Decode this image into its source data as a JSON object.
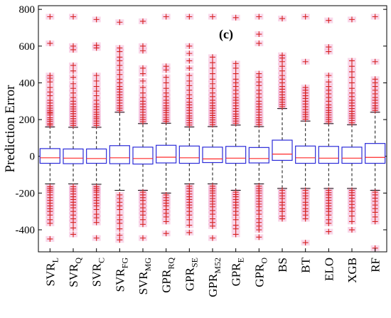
{
  "chart_data": {
    "type": "box",
    "panel_label": "(c)",
    "ylabel": "Prediction Error",
    "ylim": [
      -520,
      820
    ],
    "yticks": [
      -400,
      -200,
      0,
      200,
      400,
      600,
      800
    ],
    "grid": false,
    "colors": {
      "box": "#2b2bd9",
      "median": "#ff2a2a",
      "whisker": "#111111",
      "outlier": "#d62020",
      "outlier_halo": "#f4b8d8",
      "axis": "#000000"
    },
    "categories": [
      {
        "base": "SVR",
        "sub": "L"
      },
      {
        "base": "SVR",
        "sub": "Q"
      },
      {
        "base": "SVR",
        "sub": "C"
      },
      {
        "base": "SVR",
        "sub": "FG"
      },
      {
        "base": "SVR",
        "sub": "MG"
      },
      {
        "base": "GPR",
        "sub": "RQ"
      },
      {
        "base": "GPR",
        "sub": "SE"
      },
      {
        "base": "GPR",
        "sub": "M52"
      },
      {
        "base": "GPR",
        "sub": "E"
      },
      {
        "base": "GPR",
        "sub": "O"
      },
      {
        "base": "BS",
        "sub": ""
      },
      {
        "base": "BT",
        "sub": ""
      },
      {
        "base": "ELO",
        "sub": ""
      },
      {
        "base": "XGB",
        "sub": ""
      },
      {
        "base": "RF",
        "sub": ""
      }
    ],
    "boxes": [
      {
        "q1": -38,
        "median": -8,
        "q3": 42,
        "whisker_low": -150,
        "whisker_high": 160,
        "upper_outliers": [
          170,
          178,
          190,
          200,
          210,
          225,
          235,
          240,
          250,
          262,
          275,
          290,
          305,
          330,
          350,
          375,
          405,
          425,
          440,
          615,
          760
        ],
        "lower_outliers": [
          -165,
          -175,
          -185,
          -195,
          -210,
          -225,
          -240,
          -255,
          -270,
          -285,
          -300,
          -320,
          -345,
          -365,
          -450
        ]
      },
      {
        "q1": -40,
        "median": -10,
        "q3": 40,
        "whisker_low": -150,
        "whisker_high": 158,
        "upper_outliers": [
          168,
          180,
          192,
          205,
          218,
          232,
          245,
          258,
          270,
          285,
          300,
          320,
          345,
          370,
          395,
          430,
          465,
          495,
          580,
          600,
          760
        ],
        "lower_outliers": [
          -165,
          -178,
          -190,
          -205,
          -220,
          -235,
          -250,
          -265,
          -280,
          -300,
          -320,
          -340,
          -360,
          -390,
          -425
        ]
      },
      {
        "q1": -38,
        "median": -12,
        "q3": 40,
        "whisker_low": -152,
        "whisker_high": 158,
        "upper_outliers": [
          168,
          180,
          192,
          205,
          215,
          228,
          240,
          255,
          270,
          285,
          305,
          330,
          355,
          380,
          410,
          440,
          590,
          605,
          745
        ],
        "lower_outliers": [
          -165,
          -175,
          -185,
          -195,
          -210,
          -225,
          -240,
          -255,
          -270,
          -290,
          -315,
          -335,
          -360,
          -445
        ]
      },
      {
        "q1": -40,
        "median": -8,
        "q3": 58,
        "whisker_low": -185,
        "whisker_high": 240,
        "upper_outliers": [
          250,
          262,
          275,
          290,
          305,
          320,
          335,
          350,
          365,
          380,
          400,
          420,
          445,
          470,
          495,
          520,
          540,
          570,
          590,
          730
        ],
        "lower_outliers": [
          -210,
          -230,
          -250,
          -270,
          -290,
          -320,
          -345,
          -365,
          -395,
          -430,
          -455
        ]
      },
      {
        "q1": -42,
        "median": -12,
        "q3": 50,
        "whisker_low": -185,
        "whisker_high": 178,
        "upper_outliers": [
          188,
          200,
          212,
          225,
          240,
          255,
          270,
          285,
          300,
          320,
          345,
          375,
          410,
          450,
          480,
          575,
          600,
          735
        ],
        "lower_outliers": [
          -195,
          -210,
          -225,
          -240,
          -260,
          -280,
          -300,
          -320,
          -345,
          -370,
          -445
        ]
      },
      {
        "q1": -36,
        "median": -5,
        "q3": 60,
        "whisker_low": -200,
        "whisker_high": 180,
        "upper_outliers": [
          190,
          200,
          212,
          225,
          238,
          250,
          262,
          275,
          290,
          305,
          325,
          345,
          370,
          400,
          430,
          470,
          490,
          760
        ],
        "lower_outliers": [
          -210,
          -225,
          -240,
          -255,
          -270,
          -290,
          -310,
          -330,
          -355,
          -420
        ]
      },
      {
        "q1": -38,
        "median": -8,
        "q3": 56,
        "whisker_low": -150,
        "whisker_high": 160,
        "upper_outliers": [
          170,
          182,
          195,
          208,
          220,
          235,
          250,
          265,
          280,
          295,
          315,
          335,
          360,
          385,
          410,
          440,
          480,
          520,
          560,
          600,
          760
        ],
        "lower_outliers": [
          -162,
          -175,
          -190,
          -205,
          -220,
          -235,
          -250,
          -265,
          -280,
          -300,
          -320,
          -345,
          -375,
          -415
        ]
      },
      {
        "q1": -34,
        "median": -14,
        "q3": 50,
        "whisker_low": -150,
        "whisker_high": 162,
        "upper_outliers": [
          172,
          185,
          198,
          210,
          222,
          235,
          248,
          262,
          275,
          290,
          305,
          325,
          345,
          370,
          395,
          420,
          450,
          480,
          510,
          540,
          760
        ],
        "lower_outliers": [
          -162,
          -175,
          -188,
          -200,
          -215,
          -230,
          -245,
          -260,
          -275,
          -295,
          -315,
          -340,
          -360,
          -380,
          -445
        ]
      },
      {
        "q1": -38,
        "median": -10,
        "q3": 54,
        "whisker_low": -185,
        "whisker_high": 170,
        "upper_outliers": [
          180,
          192,
          205,
          218,
          230,
          245,
          260,
          275,
          290,
          305,
          320,
          340,
          360,
          380,
          400,
          420,
          450,
          480,
          505,
          755
        ],
        "lower_outliers": [
          -195,
          -208,
          -220,
          -235,
          -250,
          -265,
          -280,
          -300,
          -320,
          -345,
          -375,
          -395,
          -425
        ]
      },
      {
        "q1": -36,
        "median": -12,
        "q3": 48,
        "whisker_low": -150,
        "whisker_high": 162,
        "upper_outliers": [
          172,
          185,
          198,
          210,
          225,
          240,
          255,
          270,
          285,
          300,
          320,
          340,
          360,
          385,
          405,
          430,
          450,
          615,
          665,
          760
        ],
        "lower_outliers": [
          -162,
          -175,
          -188,
          -200,
          -215,
          -230,
          -245,
          -260,
          -275,
          -295,
          -315,
          -340,
          -360,
          -380,
          -400,
          -440
        ]
      },
      {
        "q1": -22,
        "median": 12,
        "q3": 88,
        "whisker_low": -175,
        "whisker_high": 260,
        "upper_outliers": [
          270,
          282,
          295,
          308,
          320,
          335,
          350,
          365,
          380,
          400,
          420,
          440,
          465,
          490,
          515,
          535,
          550,
          750
        ],
        "lower_outliers": [
          -185,
          -200,
          -215,
          -230,
          -250,
          -265,
          -285,
          -300,
          -325,
          -340
        ]
      },
      {
        "q1": -38,
        "median": -8,
        "q3": 56,
        "whisker_low": -175,
        "whisker_high": 192,
        "upper_outliers": [
          202,
          215,
          228,
          240,
          255,
          270,
          285,
          300,
          315,
          330,
          345,
          360,
          375,
          515,
          760
        ],
        "lower_outliers": [
          -185,
          -200,
          -215,
          -230,
          -250,
          -265,
          -285,
          -300,
          -320,
          -340,
          -470
        ]
      },
      {
        "q1": -38,
        "median": -10,
        "q3": 54,
        "whisker_low": -175,
        "whisker_high": 178,
        "upper_outliers": [
          188,
          200,
          212,
          225,
          238,
          250,
          265,
          280,
          300,
          320,
          340,
          360,
          380,
          405,
          440,
          570,
          595,
          740
        ],
        "lower_outliers": [
          -185,
          -198,
          -210,
          -225,
          -240,
          -255,
          -270,
          -285,
          -300,
          -320,
          -345,
          -365,
          -410
        ]
      },
      {
        "q1": -38,
        "median": -10,
        "q3": 50,
        "whisker_low": -175,
        "whisker_high": 172,
        "upper_outliers": [
          182,
          195,
          208,
          220,
          232,
          245,
          260,
          275,
          290,
          305,
          325,
          345,
          370,
          400,
          430,
          460,
          490,
          520,
          745
        ],
        "lower_outliers": [
          -185,
          -198,
          -212,
          -228,
          -245,
          -262,
          -280,
          -300,
          -325,
          -355,
          -400
        ]
      },
      {
        "q1": -38,
        "median": -6,
        "q3": 70,
        "whisker_low": -185,
        "whisker_high": 240,
        "upper_outliers": [
          250,
          262,
          275,
          290,
          305,
          320,
          340,
          360,
          380,
          400,
          420,
          515,
          760
        ],
        "lower_outliers": [
          -195,
          -210,
          -228,
          -245,
          -265,
          -285,
          -305,
          -330,
          -355,
          -500
        ]
      }
    ]
  }
}
